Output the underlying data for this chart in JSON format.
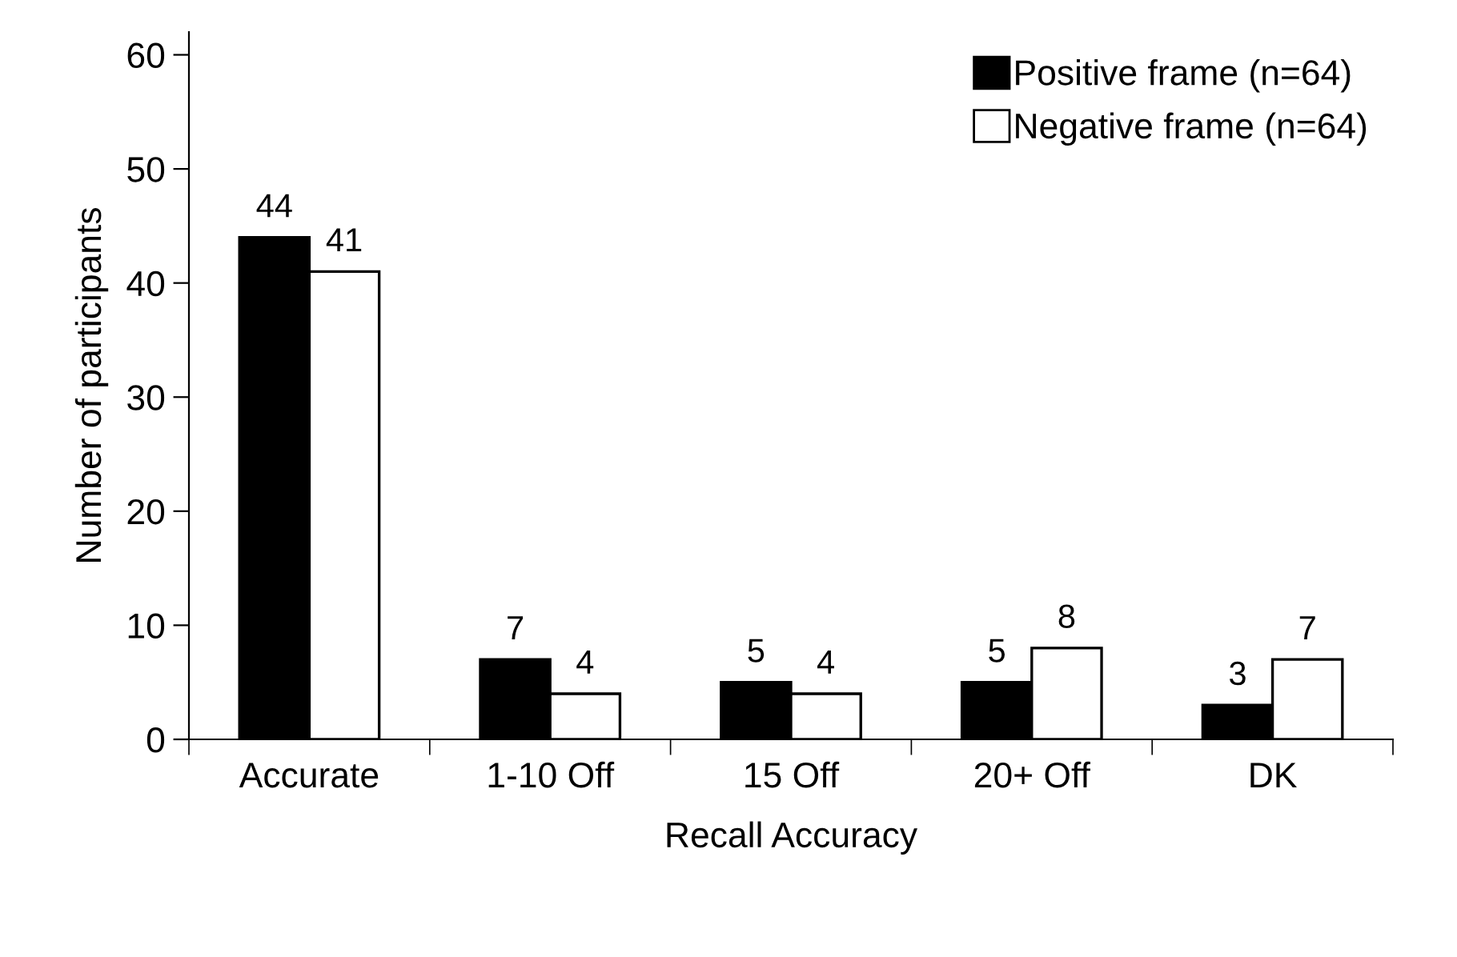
{
  "chart_data": {
    "type": "bar",
    "xlabel": "Recall Accuracy",
    "ylabel": "Number of participants",
    "categories": [
      "Accurate",
      "1-10 Off",
      "15 Off",
      "20+ Off",
      "DK"
    ],
    "series": [
      {
        "name": "Positive frame (n=64)",
        "color": "#000000",
        "values": [
          44,
          7,
          5,
          5,
          3
        ]
      },
      {
        "name": "Negative frame (n=64)",
        "color": "#ffffff",
        "values": [
          41,
          4,
          4,
          8,
          7
        ]
      }
    ],
    "ylim": [
      0,
      62
    ],
    "yticks": [
      0,
      10,
      20,
      30,
      40,
      50,
      60
    ],
    "data_labels": true,
    "legend": "top right",
    "grid": false
  }
}
